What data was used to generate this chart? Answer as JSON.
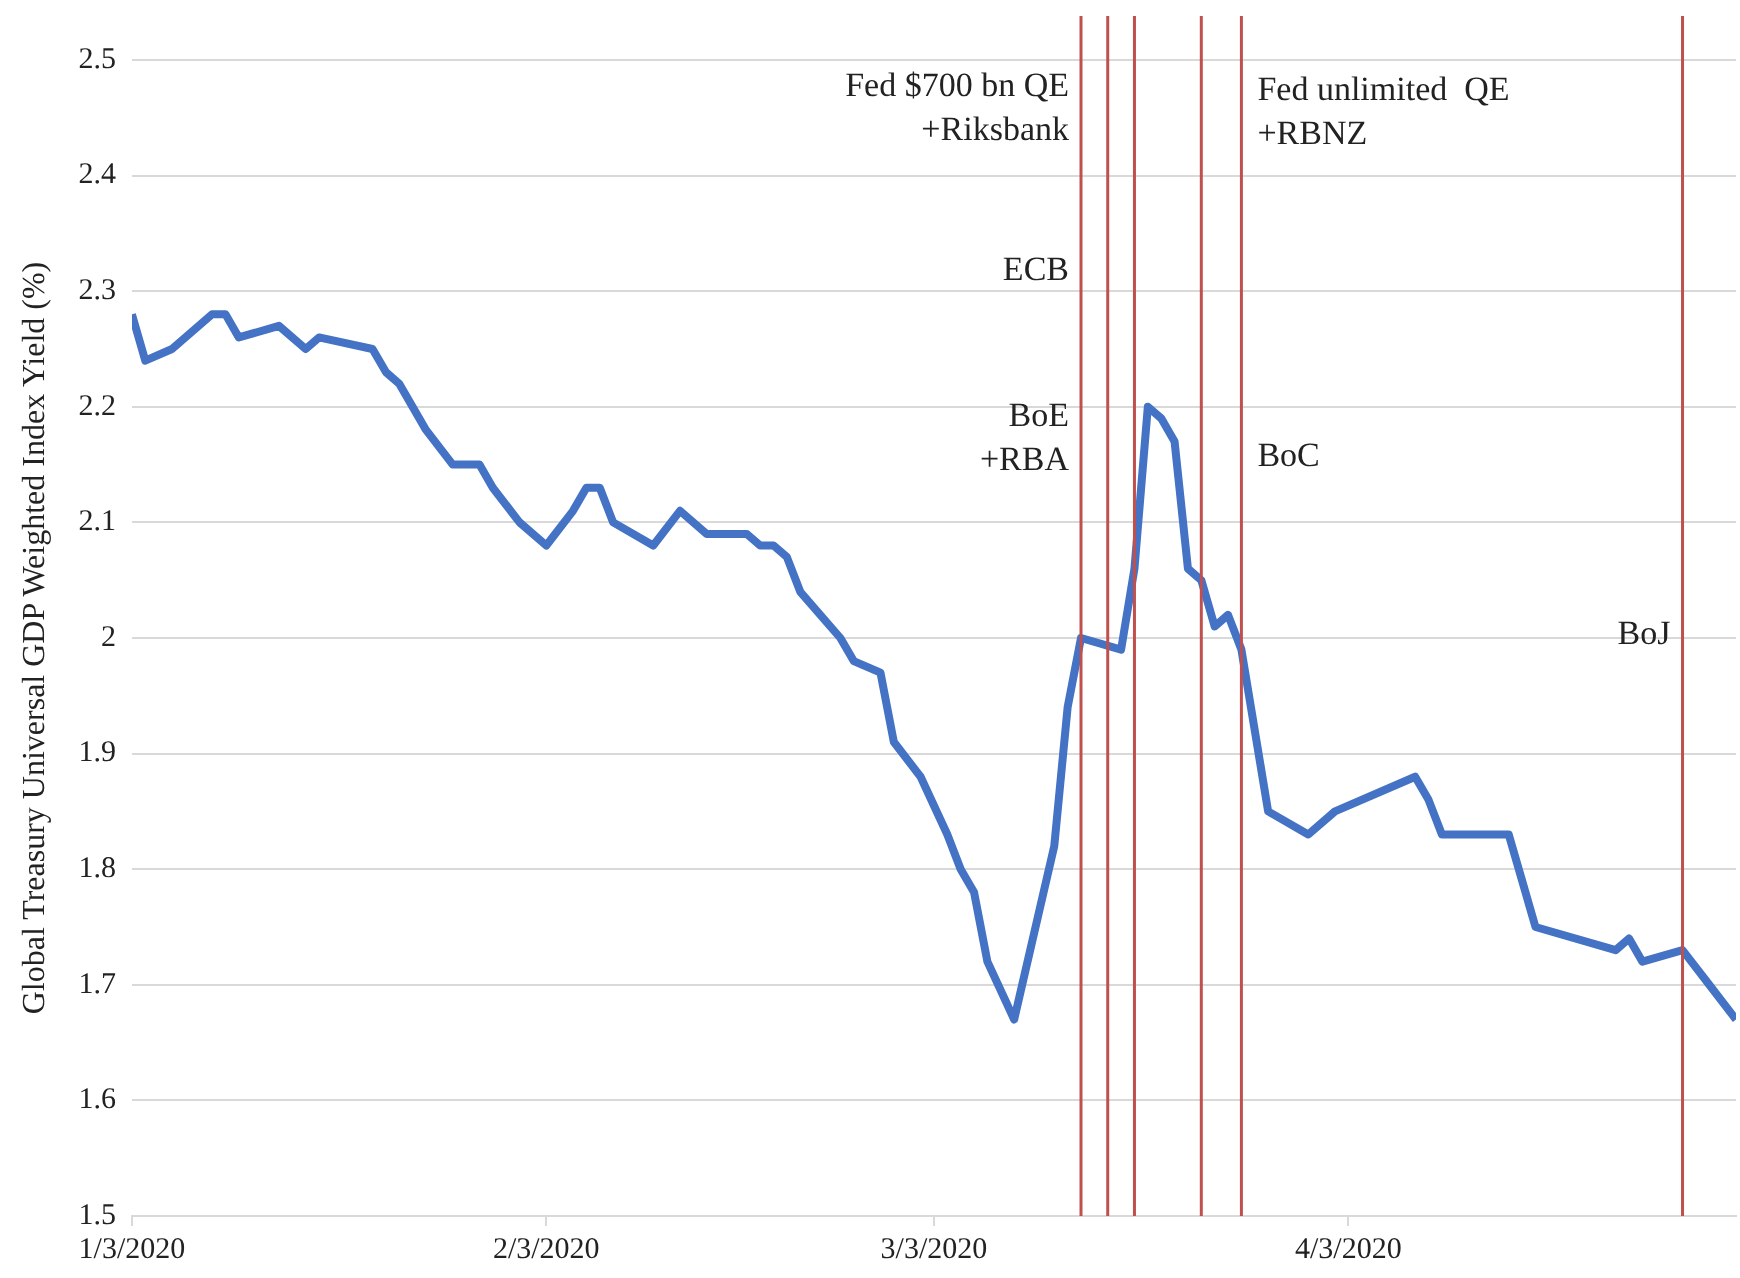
{
  "chart_data": {
    "type": "line",
    "ylabel": "Global Treasury Universal GDP Weighted Index Yield (%)",
    "x": [
      "2020-01-03",
      "2020-01-04",
      "2020-01-06",
      "2020-01-09",
      "2020-01-10",
      "2020-01-11",
      "2020-01-14",
      "2020-01-16",
      "2020-01-17",
      "2020-01-21",
      "2020-01-22",
      "2020-01-23",
      "2020-01-25",
      "2020-01-27",
      "2020-01-29",
      "2020-01-30",
      "2020-02-01",
      "2020-02-03",
      "2020-02-05",
      "2020-02-06",
      "2020-02-07",
      "2020-02-08",
      "2020-02-11",
      "2020-02-13",
      "2020-02-15",
      "2020-02-18",
      "2020-02-19",
      "2020-02-20",
      "2020-02-21",
      "2020-02-22",
      "2020-02-25",
      "2020-02-26",
      "2020-02-28",
      "2020-02-29",
      "2020-03-02",
      "2020-03-04",
      "2020-03-05",
      "2020-03-06",
      "2020-03-07",
      "2020-03-09",
      "2020-03-11",
      "2020-03-12",
      "2020-03-13",
      "2020-03-14",
      "2020-03-17",
      "2020-03-18",
      "2020-03-19",
      "2020-03-20",
      "2020-03-21",
      "2020-03-22",
      "2020-03-23",
      "2020-03-24",
      "2020-03-25",
      "2020-03-26",
      "2020-03-28",
      "2020-03-31",
      "2020-04-02",
      "2020-04-08",
      "2020-04-09",
      "2020-04-10",
      "2020-04-15",
      "2020-04-17",
      "2020-04-23",
      "2020-04-24",
      "2020-04-25",
      "2020-04-28",
      "2020-04-30",
      "2020-05-02"
    ],
    "series": [
      {
        "color": "#4472c4",
        "values": [
          2.28,
          2.24,
          2.25,
          2.28,
          2.28,
          2.26,
          2.27,
          2.25,
          2.26,
          2.25,
          2.23,
          2.22,
          2.18,
          2.15,
          2.15,
          2.13,
          2.1,
          2.08,
          2.11,
          2.13,
          2.13,
          2.1,
          2.08,
          2.11,
          2.09,
          2.09,
          2.08,
          2.08,
          2.07,
          2.04,
          2.0,
          1.98,
          1.97,
          1.91,
          1.88,
          1.83,
          1.8,
          1.78,
          1.72,
          1.67,
          1.77,
          1.82,
          1.94,
          2.0,
          1.99,
          2.06,
          2.2,
          2.19,
          2.17,
          2.06,
          2.05,
          2.01,
          2.02,
          1.99,
          1.85,
          1.83,
          1.85,
          1.88,
          1.86,
          1.83,
          1.83,
          1.75,
          1.73,
          1.74,
          1.72,
          1.73,
          1.7,
          1.67
        ]
      }
    ],
    "xlim": [
      "2020-01-03",
      "2020-05-02"
    ],
    "xticks": [
      {
        "value": "2020-01-03",
        "label": "1/3/2020"
      },
      {
        "value": "2020-02-03",
        "label": "2/3/2020"
      },
      {
        "value": "2020-03-03",
        "label": "3/3/2020"
      },
      {
        "value": "2020-04-03",
        "label": "4/3/2020"
      }
    ],
    "ylim": [
      1.5,
      2.5
    ],
    "yticks": [
      1.5,
      1.6,
      1.7,
      1.8,
      1.9,
      2,
      2.1,
      2.2,
      2.3,
      2.4,
      2.5
    ],
    "ref_lines": [
      {
        "axis": "x",
        "value": "2020-03-14",
        "label": "Fed $700 bn QE\n+Riksbank",
        "color": "#c0504d"
      },
      {
        "axis": "x",
        "value": "2020-03-16",
        "label": "ECB",
        "color": "#c0504d"
      },
      {
        "axis": "x",
        "value": "2020-03-18",
        "label": "BoE\n+RBA",
        "color": "#c0504d"
      },
      {
        "axis": "x",
        "value": "2020-03-23",
        "label": "Fed unlimited  QE\n+RBNZ",
        "color": "#c0504d"
      },
      {
        "axis": "x",
        "value": "2020-03-26",
        "label": "BoC",
        "color": "#c0504d"
      },
      {
        "axis": "x",
        "value": "2020-04-28",
        "label": "BoJ",
        "color": "#c0504d"
      }
    ],
    "grid": "y",
    "legend": false,
    "marker": "none",
    "line_style": "solid"
  }
}
